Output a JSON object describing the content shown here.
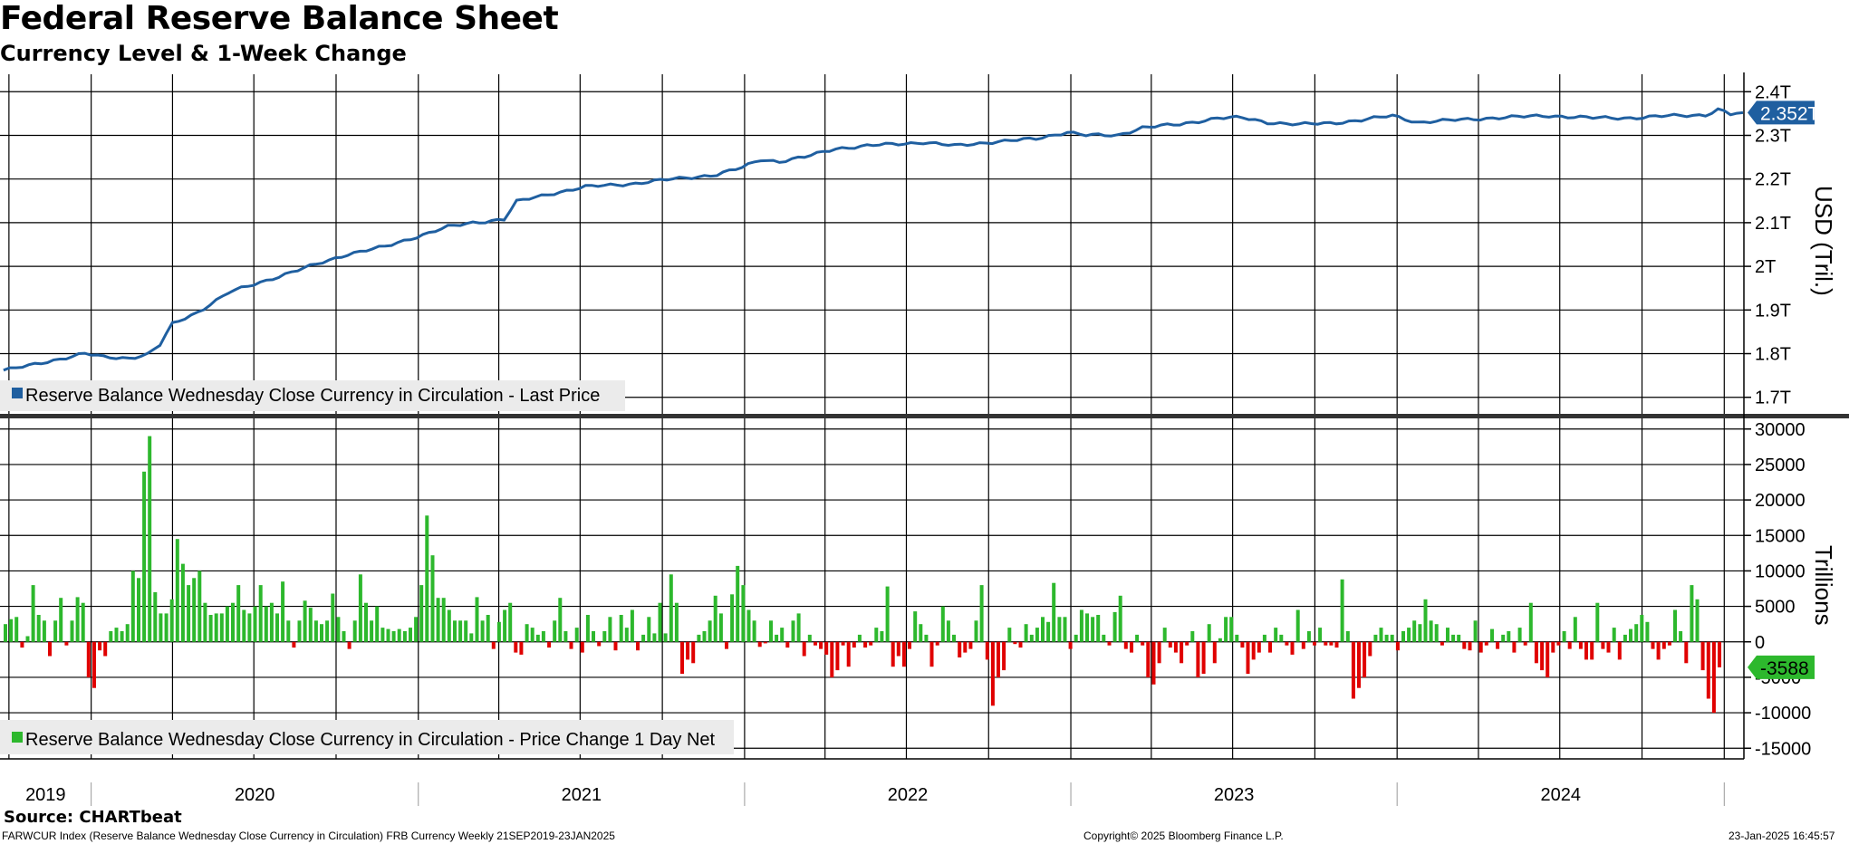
{
  "title": "Federal Reserve Balance Sheet",
  "subtitle": "Currency Level & 1-Week Change",
  "colors": {
    "line": "#1f5fa0",
    "pos": "#2db82d",
    "neg": "#e00000",
    "grid": "#000000"
  },
  "chart_data": [
    {
      "type": "line",
      "series": [
        {
          "name": "Reserve Balance Wednesday Close Currency in Circulation - Last Price",
          "values": []
        }
      ],
      "ylabel": "USD (Tril.)",
      "yticks": [
        "1.7T",
        "1.8T",
        "1.9T",
        "2T",
        "2.1T",
        "2.2T",
        "2.3T",
        "2.4T"
      ],
      "ylim": [
        1.66,
        2.44
      ],
      "last_value_label": "2.352T",
      "x_start": "2019-09-21",
      "x_end": "2025-01-23",
      "anchors": [
        [
          "2019-09-25",
          1.762
        ],
        [
          "2019-10-23",
          1.772
        ],
        [
          "2019-11-20",
          1.785
        ],
        [
          "2019-12-25",
          1.8
        ],
        [
          "2020-01-15",
          1.792
        ],
        [
          "2020-02-12",
          1.79
        ],
        [
          "2020-03-04",
          1.798
        ],
        [
          "2020-03-18",
          1.82
        ],
        [
          "2020-04-01",
          1.868
        ],
        [
          "2020-04-29",
          1.895
        ],
        [
          "2020-06-03",
          1.94
        ],
        [
          "2020-07-15",
          1.968
        ],
        [
          "2020-09-02",
          2.0
        ],
        [
          "2020-10-14",
          2.028
        ],
        [
          "2020-11-25",
          2.045
        ],
        [
          "2020-12-30",
          2.068
        ],
        [
          "2021-02-03",
          2.09
        ],
        [
          "2021-03-03",
          2.1
        ],
        [
          "2021-04-07",
          2.108
        ],
        [
          "2021-04-21",
          2.148
        ],
        [
          "2021-05-26",
          2.165
        ],
        [
          "2021-07-07",
          2.182
        ],
        [
          "2021-09-01",
          2.19
        ],
        [
          "2021-10-13",
          2.2
        ],
        [
          "2021-12-01",
          2.21
        ],
        [
          "2021-12-29",
          2.226
        ],
        [
          "2022-01-19",
          2.245
        ],
        [
          "2022-02-09",
          2.24
        ],
        [
          "2022-03-09",
          2.25
        ],
        [
          "2022-04-13",
          2.27
        ],
        [
          "2022-06-01",
          2.278
        ],
        [
          "2022-07-20",
          2.284
        ],
        [
          "2022-08-24",
          2.276
        ],
        [
          "2022-10-05",
          2.285
        ],
        [
          "2022-11-23",
          2.292
        ],
        [
          "2022-12-28",
          2.308
        ],
        [
          "2023-01-18",
          2.3
        ],
        [
          "2023-02-22",
          2.3
        ],
        [
          "2023-03-22",
          2.318
        ],
        [
          "2023-05-03",
          2.325
        ],
        [
          "2023-06-14",
          2.34
        ],
        [
          "2023-07-12",
          2.34
        ],
        [
          "2023-08-09",
          2.33
        ],
        [
          "2023-09-13",
          2.325
        ],
        [
          "2023-10-18",
          2.328
        ],
        [
          "2023-11-22",
          2.335
        ],
        [
          "2023-12-27",
          2.345
        ],
        [
          "2024-01-24",
          2.33
        ],
        [
          "2024-03-06",
          2.335
        ],
        [
          "2024-04-17",
          2.34
        ],
        [
          "2024-06-19",
          2.345
        ],
        [
          "2024-08-07",
          2.34
        ],
        [
          "2024-09-18",
          2.34
        ],
        [
          "2024-11-06",
          2.345
        ],
        [
          "2024-12-11",
          2.347
        ],
        [
          "2024-12-26",
          2.36
        ],
        [
          "2025-01-08",
          2.348
        ],
        [
          "2025-01-22",
          2.352
        ]
      ]
    },
    {
      "type": "bar",
      "series": [
        {
          "name": "Reserve Balance Wednesday Close Currency in Circulation - Price Change 1 Day Net",
          "values": [
            2500,
            3200,
            3500,
            -800,
            800,
            8000,
            3800,
            3000,
            -2000,
            3000,
            6200,
            -500,
            3000,
            6300,
            5500,
            -5000,
            -6500,
            -1200,
            -2000,
            1500,
            2000,
            1500,
            2500,
            10000,
            9000,
            24000,
            29000,
            7000,
            4000,
            4000,
            6000,
            14500,
            11000,
            8000,
            9000,
            10000,
            5500,
            3800,
            4000,
            4000,
            5000,
            5500,
            8000,
            4500,
            4000,
            5000,
            8000,
            5000,
            5500,
            4000,
            8500,
            3000,
            -800,
            3000,
            5800,
            4800,
            3000,
            2500,
            3000,
            6800,
            3500,
            1500,
            -1000,
            3000,
            9500,
            5500,
            3000,
            5000,
            2000,
            1800,
            1500,
            1800,
            1500,
            2000,
            3500,
            8000,
            17800,
            12200,
            6200,
            6200,
            4500,
            3000,
            3000,
            3000,
            1200,
            6300,
            3000,
            3800,
            -1000,
            2800,
            4500,
            5500,
            -1500,
            -1800,
            2500,
            2000,
            1000,
            1500,
            -800,
            3000,
            6200,
            1500,
            -1000,
            2000,
            -1500,
            3800,
            1500,
            -600,
            1500,
            3500,
            -1200,
            3800,
            2000,
            4500,
            -1200,
            1000,
            3500,
            1200,
            5500,
            1200,
            9500,
            5500,
            -4500,
            -2500,
            -3000,
            1000,
            1500,
            3000,
            6500,
            4000,
            -1000,
            6700,
            10700,
            8000,
            4500,
            3000,
            -700,
            -200,
            3000,
            1000,
            2000,
            -800,
            3000,
            4000,
            -2000,
            1000,
            -500,
            -1000,
            -1800,
            -5000,
            -4000,
            -500,
            -3500,
            -800,
            1000,
            -800,
            -500,
            2000,
            1500,
            7800,
            -3500,
            -2000,
            -3500,
            -1000,
            4300,
            2500,
            1000,
            -3500,
            -500,
            5000,
            3000,
            1000,
            -2200,
            -1500,
            -1000,
            3000,
            8000,
            -2500,
            -9000,
            -5000,
            -4000,
            2000,
            -300,
            -800,
            2500,
            1000,
            2000,
            3500,
            2800,
            8300,
            3500,
            3500,
            -1000,
            1000,
            4500,
            4000,
            3500,
            3800,
            1000,
            -500,
            4200,
            6500,
            -1000,
            -1500,
            1000,
            -500,
            -5000,
            -6000,
            -3000,
            2000,
            -800,
            -1500,
            -3000,
            -500,
            1500,
            -5000,
            -4500,
            2500,
            -3000,
            500,
            3500,
            3500,
            1000,
            -800,
            -4500,
            -2500,
            -1500,
            1000,
            -1500,
            2000,
            1000,
            -500,
            -1800,
            4500,
            -1000,
            1500,
            -500,
            2000,
            -500,
            -500,
            -800,
            8800,
            1500,
            -8000,
            -6500,
            -5000,
            -2000,
            1000,
            2000,
            1000,
            1000,
            -1200,
            1500,
            2000,
            3000,
            2500,
            6000,
            3000,
            2500,
            -500,
            2000,
            1000,
            1000,
            -1000,
            -1200,
            3000,
            -1500,
            -500,
            1800,
            -1000,
            1000,
            1500,
            -1500,
            2000,
            -500,
            5500,
            -3000,
            -4000,
            -5000,
            -1500,
            -500,
            1500,
            -1000,
            3500,
            -1000,
            -2500,
            -2500,
            5500,
            -1000,
            -1500,
            2000,
            -2500,
            1000,
            1800,
            2500,
            3800,
            2800,
            -1000,
            -2500,
            -1000,
            -500,
            4500,
            1500,
            -3000,
            8000,
            6000,
            -4000,
            -8000,
            -10000,
            -3588
          ]
        }
      ],
      "ylabel": "Trillions",
      "yticks": [
        "30000",
        "25000",
        "20000",
        "15000",
        "10000",
        "5000",
        "0",
        "-5000",
        "-10000",
        "-15000"
      ],
      "ylim": [
        -16500,
        31500
      ],
      "last_value_label": "-3588"
    }
  ],
  "x_axis": {
    "labels": [
      "2019",
      "2020",
      "2021",
      "2022",
      "2023",
      "2024"
    ]
  },
  "footer": {
    "source": "Source: CHARTbeat",
    "left": "FARWCUR Index (Reserve Balance Wednesday Close Currency in Circulation) FRB Currency  Weekly 21SEP2019-23JAN2025",
    "center": "Copyright© 2025 Bloomberg Finance L.P.",
    "right": "23-Jan-2025 16:45:57"
  }
}
